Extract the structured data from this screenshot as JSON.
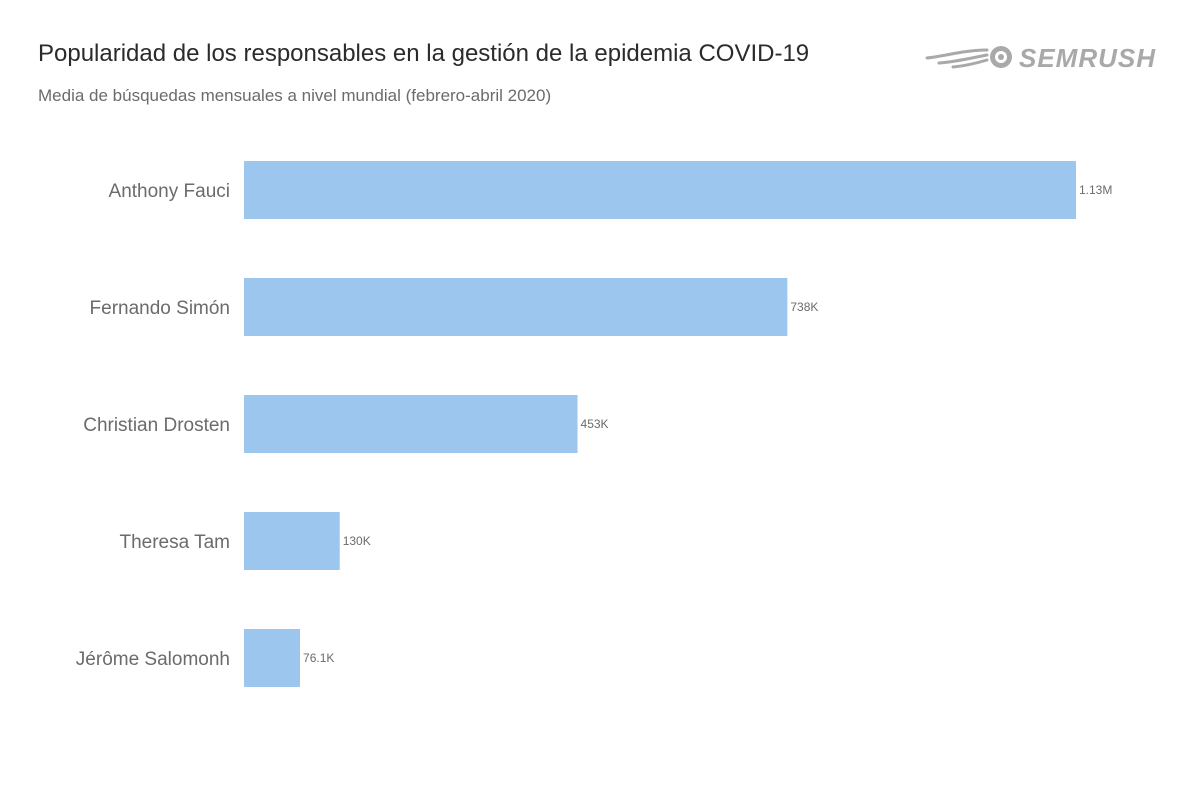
{
  "header": {
    "title": "Popularidad de los responsables en la gestión de la epidemia COVID-19",
    "subtitle": "Media de búsquedas mensuales a nivel mundial (febrero-abril 2020)"
  },
  "brand": {
    "logo_text": "SEMRUSH",
    "logo_icon": "semrush-fireball-icon",
    "logo_color": "#a9a9a9"
  },
  "colors": {
    "bar": "#9dc6ef",
    "label": "#6b6b6b",
    "title": "#2b2b2b"
  },
  "chart_data": {
    "type": "bar",
    "orientation": "horizontal",
    "title": "Popularidad de los responsables en la gestión de la epidemia COVID-19",
    "subtitle": "Media de búsquedas mensuales a nivel mundial (febrero-abril 2020)",
    "categories": [
      "Anthony Fauci",
      "Fernando Simón",
      "Christian Drosten",
      "Theresa Tam",
      "Jérôme Salomonh"
    ],
    "values": [
      1130000,
      738000,
      453000,
      130000,
      76100
    ],
    "value_labels": [
      "1.13M",
      "738K",
      "453K",
      "130K",
      "76.1K"
    ],
    "xlim": [
      0,
      1130000
    ],
    "grid": false,
    "legend": "none"
  }
}
